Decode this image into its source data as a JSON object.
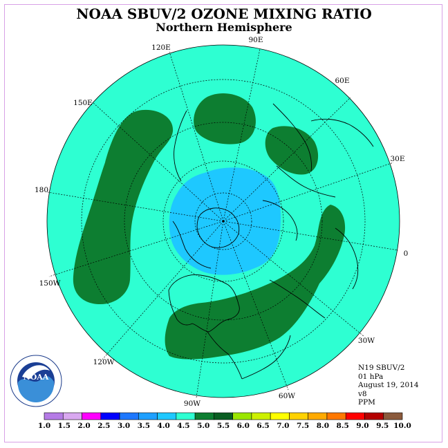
{
  "header": {
    "title": "NOAA SBUV/2 OZONE MIXING RATIO",
    "subtitle": "Northern Hemisphere"
  },
  "map": {
    "projection": "north polar stereographic",
    "longitude_labels": [
      "90E",
      "60E",
      "30E",
      "0",
      "30W",
      "60W",
      "90W",
      "120W",
      "150W",
      "180",
      "150E",
      "120E"
    ],
    "field": {
      "background_level": "4.5-5.0",
      "regions": [
        {
          "name": "polar-low",
          "level": "4.0-4.5",
          "color": "#1ec8ff"
        },
        {
          "name": "pacific-band",
          "level": "5.0-5.5",
          "color": "#0d7e31"
        },
        {
          "name": "asia-blob",
          "level": "5.0-5.5",
          "color": "#0d7e31"
        },
        {
          "name": "india-blob",
          "level": "5.0-5.5",
          "color": "#0d7e31"
        },
        {
          "name": "atlantic-arc",
          "level": "5.0-5.5",
          "color": "#0d7e31"
        }
      ]
    }
  },
  "info": {
    "satellite": "N19 SBUV/2",
    "level": "01 hPa",
    "date": "August 19, 2014",
    "version": "v8",
    "units": "PPM"
  },
  "colorbar": {
    "labels": [
      "1.0",
      "1.5",
      "2.0",
      "2.5",
      "3.0",
      "3.5",
      "4.0",
      "4.5",
      "5.0",
      "5.5",
      "6.0",
      "6.5",
      "7.0",
      "7.5",
      "8.0",
      "8.5",
      "9.0",
      "9.5",
      "10.0"
    ],
    "colors": [
      "#b57be6",
      "#d9a8f0",
      "#ff00ff",
      "#0000ff",
      "#1e78ff",
      "#1ea0ff",
      "#1ec8ff",
      "#2effd2",
      "#0d7e31",
      "#0a5e22",
      "#9ae600",
      "#cdf000",
      "#ffff00",
      "#ffd200",
      "#ffaa00",
      "#ff7800",
      "#ff0000",
      "#b40000",
      "#8b5a3c"
    ]
  },
  "logo": {
    "text": "NOAA",
    "ring_text": "NATIONAL OCEANIC AND ATMOSPHERIC ADMINISTRATION · U.S. DEPARTMENT OF COMMERCE"
  }
}
